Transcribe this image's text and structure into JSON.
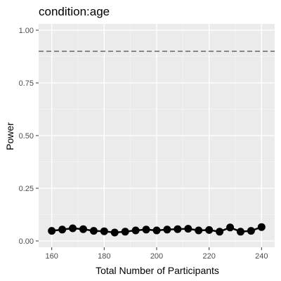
{
  "chart_data": {
    "type": "line",
    "title": "condition:age",
    "xlabel": "Total Number of Participants",
    "ylabel": "Power",
    "xlim": [
      155,
      245
    ],
    "ylim": [
      -0.03,
      1.03
    ],
    "x_ticks": [
      160,
      180,
      200,
      220,
      240
    ],
    "x_tick_labels": [
      "160",
      "180",
      "200",
      "220",
      "240"
    ],
    "y_ticks": [
      0,
      0.25,
      0.5,
      0.75,
      1.0
    ],
    "y_tick_labels": [
      "0.00",
      "0.25",
      "0.50",
      "0.75",
      "1.00"
    ],
    "grid": true,
    "reference_line": {
      "y": 0.9,
      "style": "dashed",
      "color": "#666666"
    },
    "series": [
      {
        "x": [
          160,
          164,
          168,
          172,
          176,
          180,
          184,
          188,
          192,
          196,
          200,
          204,
          208,
          212,
          216,
          220,
          224,
          228,
          232,
          236,
          240
        ],
        "y": [
          0.048,
          0.054,
          0.06,
          0.056,
          0.048,
          0.046,
          0.04,
          0.044,
          0.05,
          0.054,
          0.05,
          0.054,
          0.056,
          0.058,
          0.05,
          0.052,
          0.044,
          0.064,
          0.044,
          0.048,
          0.066
        ],
        "color": "#000000"
      }
    ]
  },
  "colors": {
    "panel_background": "#ebebeb",
    "grid_major": "#ffffff",
    "data": "#000000",
    "reference": "#666666"
  }
}
